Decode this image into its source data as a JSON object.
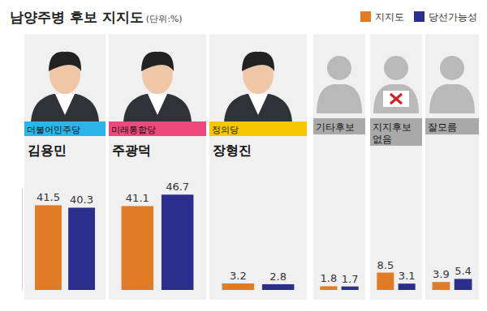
{
  "chart_data": {
    "type": "bar",
    "title": "남양주병 후보 지지도",
    "subtitle": "(단위:%)",
    "categories": [
      "김용민",
      "주광덕",
      "장형진",
      "기타후보",
      "지지후보 없음",
      "잘모름"
    ],
    "parties": [
      {
        "text": "더불어민주당",
        "color": "#2bb5e8"
      },
      {
        "text": "미래통합당",
        "color": "#ec4a7c"
      },
      {
        "text": "정의당",
        "color": "#f6c700"
      }
    ],
    "series": [
      {
        "name": "지지도",
        "color": "#e07b26",
        "values": [
          41.5,
          41.1,
          3.2,
          1.8,
          8.5,
          3.9
        ]
      },
      {
        "name": "당선가능성",
        "color": "#2b2e8c",
        "values": [
          40.3,
          46.7,
          2.8,
          1.7,
          3.1,
          5.4
        ]
      }
    ],
    "ylim": [
      0,
      50
    ],
    "yticks": [],
    "data_labels": true,
    "tick_labels": false,
    "legend": "top-right"
  }
}
